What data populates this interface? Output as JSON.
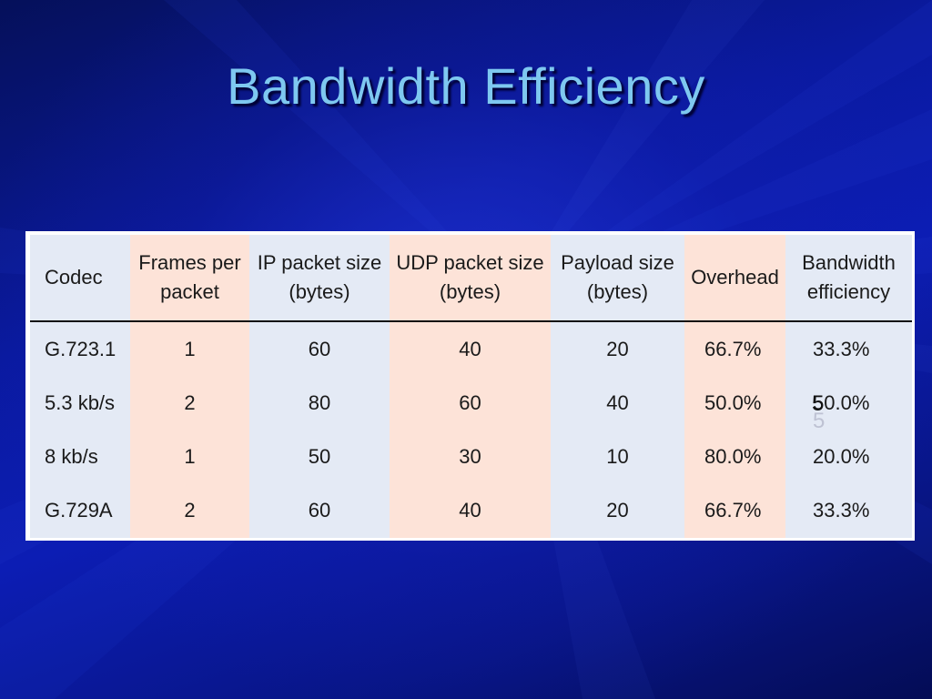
{
  "slide": {
    "title": "Bandwidth Efficiency",
    "slide_number": "5"
  },
  "colors": {
    "title": "#7ec8f0",
    "background": "#0a1aa0",
    "column_blue": "#e4eaf5",
    "column_pink": "#fde3d8"
  },
  "table": {
    "headers": [
      "Codec",
      "Frames per packet",
      "IP packet size (bytes)",
      "UDP packet size (bytes)",
      "Payload size (bytes)",
      "Overhead",
      "Bandwidth efficiency"
    ],
    "rows": [
      [
        "G.723.1",
        "1",
        "60",
        "40",
        "20",
        "66.7%",
        "33.3%"
      ],
      [
        "5.3 kb/s",
        "2",
        "80",
        "60",
        "40",
        "50.0%",
        "50.0%"
      ],
      [
        "8 kb/s",
        "1",
        "50",
        "30",
        "10",
        "80.0%",
        "20.0%"
      ],
      [
        "G.729A",
        "2",
        "60",
        "40",
        "20",
        "66.7%",
        "33.3%"
      ]
    ]
  }
}
